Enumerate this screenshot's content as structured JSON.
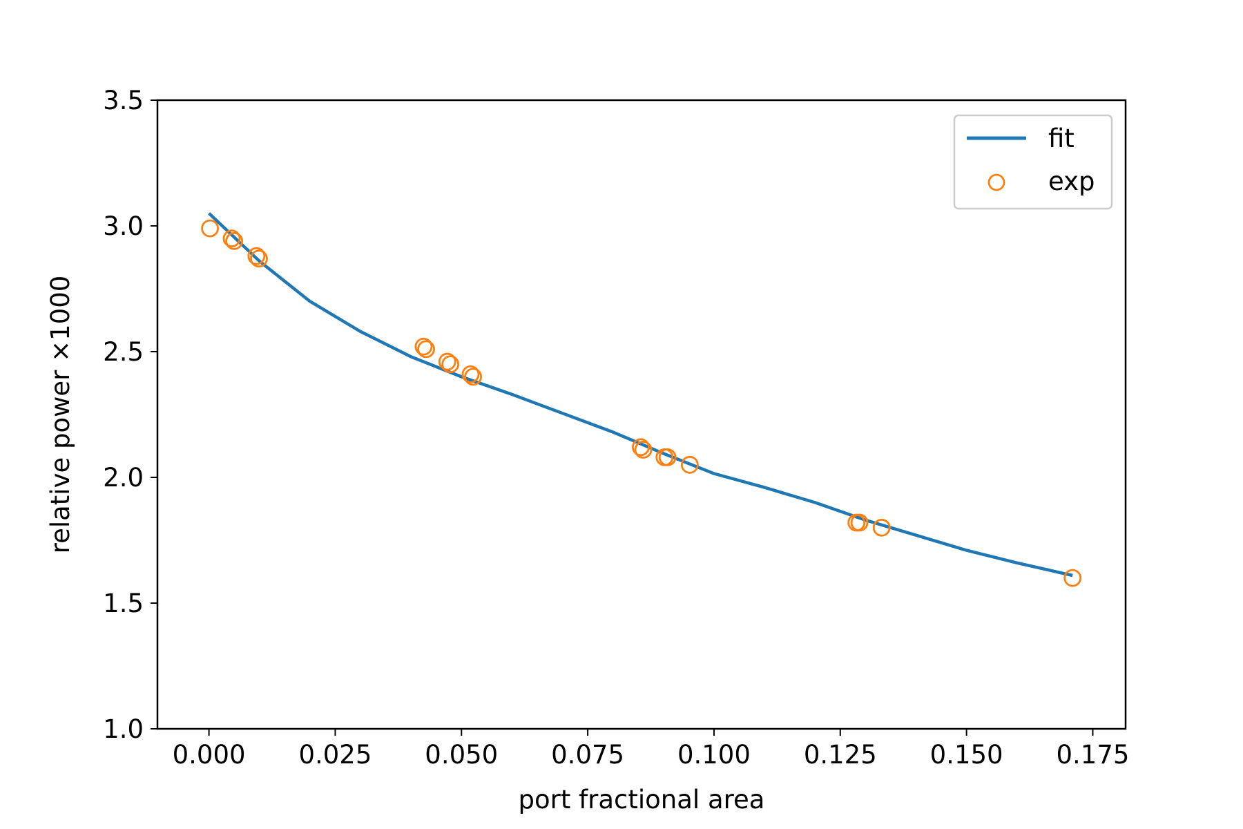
{
  "chart_data": {
    "type": "scatter",
    "xlabel": "port fractional area",
    "ylabel": "relative power ×1000",
    "xlim": [
      -0.0102,
      0.1815
    ],
    "ylim": [
      1.0,
      3.5
    ],
    "x_ticks": [
      "0.000",
      "0.025",
      "0.050",
      "0.075",
      "0.100",
      "0.125",
      "0.150",
      "0.175"
    ],
    "y_ticks": [
      "1.0",
      "1.5",
      "2.0",
      "2.5",
      "3.0",
      "3.5"
    ],
    "grid": false,
    "legend_position": "top-right",
    "series": [
      {
        "name": "fit",
        "kind": "line",
        "color": "#1f77b4",
        "x": [
          0.0,
          0.01,
          0.02,
          0.03,
          0.04,
          0.05,
          0.06,
          0.07,
          0.08,
          0.09,
          0.1,
          0.11,
          0.12,
          0.13,
          0.14,
          0.15,
          0.16,
          0.171
        ],
        "y": [
          3.05,
          2.86,
          2.7,
          2.58,
          2.48,
          2.4,
          2.33,
          2.255,
          2.18,
          2.095,
          2.015,
          1.96,
          1.9,
          1.83,
          1.77,
          1.71,
          1.66,
          1.61
        ]
      },
      {
        "name": "exp",
        "kind": "scatter",
        "color": "#ff7f0e",
        "x": [
          0.0002,
          0.0045,
          0.005,
          0.0094,
          0.0099,
          0.0425,
          0.043,
          0.0472,
          0.0478,
          0.0518,
          0.0523,
          0.0855,
          0.086,
          0.0902,
          0.0908,
          0.0952,
          0.1282,
          0.1288,
          0.1332,
          0.171
        ],
        "y": [
          2.99,
          2.95,
          2.94,
          2.88,
          2.87,
          2.52,
          2.51,
          2.46,
          2.45,
          2.41,
          2.4,
          2.12,
          2.11,
          2.08,
          2.08,
          2.05,
          1.82,
          1.82,
          1.8,
          1.6
        ]
      }
    ]
  }
}
